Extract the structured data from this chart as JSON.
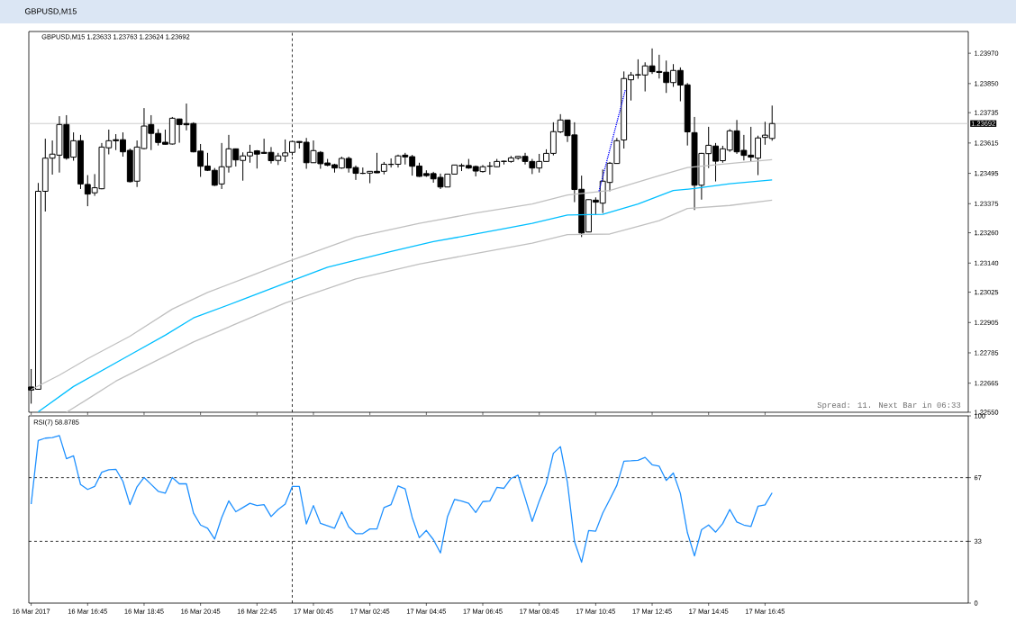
{
  "chart_data": [
    {
      "type": "candlestick",
      "title": "GBPUSD,M15",
      "subtitle": "GBPUSD,M15  1.23633 1.23763 1.23624 1.23692",
      "x": [
        "2017-03-16T14:45",
        "2017-03-16T15:00",
        "2017-03-16T15:15",
        "2017-03-16T15:30",
        "2017-03-16T15:45",
        "2017-03-16T16:00",
        "2017-03-16T16:15",
        "2017-03-16T16:30",
        "2017-03-16T16:45",
        "2017-03-16T17:00",
        "2017-03-16T17:15",
        "2017-03-16T17:30",
        "2017-03-16T17:45",
        "2017-03-16T18:00",
        "2017-03-16T18:15",
        "2017-03-16T18:30",
        "2017-03-16T18:45",
        "2017-03-16T19:00",
        "2017-03-16T19:15",
        "2017-03-16T19:30",
        "2017-03-16T19:45",
        "2017-03-16T20:00",
        "2017-03-16T20:15",
        "2017-03-16T20:30",
        "2017-03-16T20:45",
        "2017-03-16T21:00",
        "2017-03-16T21:15",
        "2017-03-16T21:30",
        "2017-03-16T21:45",
        "2017-03-16T22:00",
        "2017-03-16T22:15",
        "2017-03-16T22:30",
        "2017-03-16T22:45",
        "2017-03-16T23:00",
        "2017-03-16T23:15",
        "2017-03-16T23:30",
        "2017-03-16T23:45",
        "2017-03-17T00:00",
        "2017-03-17T00:15",
        "2017-03-17T00:30",
        "2017-03-17T00:45",
        "2017-03-17T01:00",
        "2017-03-17T01:15",
        "2017-03-17T01:30",
        "2017-03-17T01:45",
        "2017-03-17T02:00",
        "2017-03-17T02:15",
        "2017-03-17T02:30",
        "2017-03-17T02:45",
        "2017-03-17T03:00",
        "2017-03-17T03:15",
        "2017-03-17T03:30",
        "2017-03-17T03:45",
        "2017-03-17T04:00",
        "2017-03-17T04:15",
        "2017-03-17T04:30",
        "2017-03-17T04:45",
        "2017-03-17T05:00",
        "2017-03-17T05:15",
        "2017-03-17T05:30",
        "2017-03-17T05:45",
        "2017-03-17T06:00",
        "2017-03-17T06:15",
        "2017-03-17T06:30",
        "2017-03-17T06:45",
        "2017-03-17T07:00",
        "2017-03-17T07:15",
        "2017-03-17T07:30",
        "2017-03-17T07:45",
        "2017-03-17T08:00",
        "2017-03-17T08:15",
        "2017-03-17T08:30",
        "2017-03-17T08:45",
        "2017-03-17T09:00",
        "2017-03-17T09:15",
        "2017-03-17T09:30",
        "2017-03-17T09:45",
        "2017-03-17T10:00",
        "2017-03-17T10:15",
        "2017-03-17T10:30",
        "2017-03-17T10:45",
        "2017-03-17T11:00",
        "2017-03-17T11:15",
        "2017-03-17T11:30",
        "2017-03-17T11:45",
        "2017-03-17T12:00",
        "2017-03-17T12:15",
        "2017-03-17T12:30",
        "2017-03-17T12:45",
        "2017-03-17T13:00",
        "2017-03-17T13:15",
        "2017-03-17T13:30",
        "2017-03-17T13:45",
        "2017-03-17T14:00",
        "2017-03-17T14:15",
        "2017-03-17T14:30",
        "2017-03-17T14:45",
        "2017-03-17T15:00",
        "2017-03-17T15:15",
        "2017-03-17T15:30",
        "2017-03-17T15:45",
        "2017-03-17T16:00",
        "2017-03-17T16:15",
        "2017-03-17T16:30",
        "2017-03-17T16:45",
        "2017-03-17T17:00"
      ],
      "ohlc": [
        [
          1.2265,
          1.22721,
          1.22584,
          1.22638
        ],
        [
          1.22641,
          1.23457,
          1.22641,
          1.23424
        ],
        [
          1.23424,
          1.23632,
          1.23344,
          1.23555
        ],
        [
          1.23555,
          1.23625,
          1.2349,
          1.23571
        ],
        [
          1.23567,
          1.23721,
          1.23498,
          1.23688
        ],
        [
          1.23688,
          1.23725,
          1.23549,
          1.23555
        ],
        [
          1.23559,
          1.23657,
          1.23545,
          1.23624
        ],
        [
          1.23624,
          1.23647,
          1.23433,
          1.23453
        ],
        [
          1.23451,
          1.23488,
          1.23365,
          1.23413
        ],
        [
          1.23418,
          1.23492,
          1.23406,
          1.23438
        ],
        [
          1.23434,
          1.23615,
          1.23432,
          1.23599
        ],
        [
          1.23596,
          1.23668,
          1.2357,
          1.23624
        ],
        [
          1.23628,
          1.2365,
          1.23587,
          1.23624
        ],
        [
          1.23628,
          1.23657,
          1.23561,
          1.2358
        ],
        [
          1.23586,
          1.23593,
          1.23459,
          1.23462
        ],
        [
          1.23464,
          1.23625,
          1.23441,
          1.23599
        ],
        [
          1.23593,
          1.23753,
          1.2359,
          1.23682
        ],
        [
          1.23688,
          1.23725,
          1.23587,
          1.23653
        ],
        [
          1.23653,
          1.2367,
          1.23605,
          1.23617
        ],
        [
          1.23618,
          1.23668,
          1.23609,
          1.2361
        ],
        [
          1.23611,
          1.23718,
          1.23609,
          1.23713
        ],
        [
          1.2371,
          1.23711,
          1.23616,
          1.23688
        ],
        [
          1.23692,
          1.23771,
          1.23665,
          1.23687
        ],
        [
          1.23692,
          1.23697,
          1.23578,
          1.2358
        ],
        [
          1.23583,
          1.23611,
          1.23481,
          1.23523
        ],
        [
          1.23524,
          1.23576,
          1.23504,
          1.23507
        ],
        [
          1.23507,
          1.23516,
          1.23445,
          1.23448
        ],
        [
          1.23453,
          1.23615,
          1.23433,
          1.23521
        ],
        [
          1.23521,
          1.23647,
          1.23498,
          1.23592
        ],
        [
          1.23592,
          1.23593,
          1.23522,
          1.23548
        ],
        [
          1.23546,
          1.23578,
          1.23466,
          1.23564
        ],
        [
          1.23564,
          1.23608,
          1.23537,
          1.23578
        ],
        [
          1.23584,
          1.23587,
          1.23514,
          1.23571
        ],
        [
          1.23578,
          1.23632,
          1.23573,
          1.23574
        ],
        [
          1.23578,
          1.23599,
          1.23534,
          1.23545
        ],
        [
          1.23546,
          1.23576,
          1.23528,
          1.23564
        ],
        [
          1.23564,
          1.23629,
          1.2354,
          1.23576
        ],
        [
          1.23578,
          1.23623,
          1.23566,
          1.23621
        ],
        [
          1.23621,
          1.23622,
          1.23593,
          1.23617
        ],
        [
          1.23618,
          1.23635,
          1.23513,
          1.23537
        ],
        [
          1.23537,
          1.23625,
          1.23537,
          1.23585
        ],
        [
          1.23578,
          1.23583,
          1.23513,
          1.23533
        ],
        [
          1.23536,
          1.23552,
          1.23523,
          1.23527
        ],
        [
          1.23529,
          1.23533,
          1.23498,
          1.23516
        ],
        [
          1.23516,
          1.23561,
          1.23513,
          1.23554
        ],
        [
          1.23554,
          1.23561,
          1.23498,
          1.23516
        ],
        [
          1.23518,
          1.23526,
          1.23469,
          1.23495
        ],
        [
          1.23495,
          1.23518,
          1.23492,
          1.23495
        ],
        [
          1.23496,
          1.23504,
          1.23456,
          1.23503
        ],
        [
          1.23503,
          1.23576,
          1.23496,
          1.23497
        ],
        [
          1.23503,
          1.2354,
          1.23491,
          1.23531
        ],
        [
          1.2353,
          1.23554,
          1.23518,
          1.23531
        ],
        [
          1.23531,
          1.23569,
          1.23518,
          1.23564
        ],
        [
          1.23567,
          1.23576,
          1.2353,
          1.2356
        ],
        [
          1.23561,
          1.23568,
          1.23486,
          1.23523
        ],
        [
          1.23524,
          1.23537,
          1.23481,
          1.23483
        ],
        [
          1.23494,
          1.23507,
          1.23481,
          1.23486
        ],
        [
          1.23494,
          1.23501,
          1.23458,
          1.23473
        ],
        [
          1.23479,
          1.23494,
          1.23433,
          1.23441
        ],
        [
          1.23441,
          1.23492,
          1.23441,
          1.23492
        ],
        [
          1.23492,
          1.23528,
          1.23492,
          1.23528
        ],
        [
          1.23524,
          1.23534,
          1.23504,
          1.23526
        ],
        [
          1.23526,
          1.23552,
          1.23513,
          1.23516
        ],
        [
          1.23522,
          1.23526,
          1.23483,
          1.23504
        ],
        [
          1.23502,
          1.23528,
          1.23498,
          1.23521
        ],
        [
          1.23523,
          1.2354,
          1.2349,
          1.23524
        ],
        [
          1.23521,
          1.23552,
          1.2352,
          1.23542
        ],
        [
          1.23542,
          1.23545,
          1.2353,
          1.23543
        ],
        [
          1.23542,
          1.23564,
          1.23537,
          1.23556
        ],
        [
          1.23555,
          1.23564,
          1.23549,
          1.23562
        ],
        [
          1.23562,
          1.23576,
          1.2353,
          1.23542
        ],
        [
          1.23542,
          1.23552,
          1.23492,
          1.23516
        ],
        [
          1.23516,
          1.23572,
          1.23498,
          1.23542
        ],
        [
          1.23542,
          1.2359,
          1.23542,
          1.23574
        ],
        [
          1.23574,
          1.23697,
          1.23566,
          1.2366
        ],
        [
          1.23659,
          1.23729,
          1.23654,
          1.23706
        ],
        [
          1.23706,
          1.23707,
          1.23619,
          1.23644
        ],
        [
          1.23647,
          1.23697,
          1.23381,
          1.23431
        ],
        [
          1.23432,
          1.23486,
          1.23243,
          1.23259
        ],
        [
          1.23263,
          1.23391,
          1.23263,
          1.23391
        ],
        [
          1.23389,
          1.234,
          1.23332,
          1.23381
        ],
        [
          1.23377,
          1.2351,
          1.23338,
          1.23464
        ],
        [
          1.23459,
          1.2354,
          1.23424,
          1.23535
        ],
        [
          1.23534,
          1.23635,
          1.23534,
          1.23624
        ],
        [
          1.23627,
          1.23898,
          1.23593,
          1.2387
        ],
        [
          1.23865,
          1.23896,
          1.23783,
          1.23884
        ],
        [
          1.23884,
          1.23946,
          1.23869,
          1.23885
        ],
        [
          1.23884,
          1.23934,
          1.23819,
          1.2392
        ],
        [
          1.2392,
          1.23989,
          1.23888,
          1.23897
        ],
        [
          1.23898,
          1.23964,
          1.2387,
          1.23894
        ],
        [
          1.23895,
          1.23941,
          1.23813,
          1.23854
        ],
        [
          1.23854,
          1.23927,
          1.23837,
          1.23902
        ],
        [
          1.23902,
          1.23914,
          1.2378,
          1.23844
        ],
        [
          1.23845,
          1.23852,
          1.23605,
          1.23659
        ],
        [
          1.23656,
          1.23718,
          1.2335,
          1.23448
        ],
        [
          1.23448,
          1.23576,
          1.23391,
          1.23574
        ],
        [
          1.23573,
          1.23679,
          1.23516,
          1.23606
        ],
        [
          1.23603,
          1.23615,
          1.23463,
          1.23543
        ],
        [
          1.23545,
          1.23604,
          1.23537,
          1.23592
        ],
        [
          1.23587,
          1.2367,
          1.2358,
          1.23663
        ],
        [
          1.23663,
          1.23706,
          1.23572,
          1.2358
        ],
        [
          1.23586,
          1.23647,
          1.23546,
          1.23566
        ],
        [
          1.23567,
          1.23679,
          1.23542,
          1.23559
        ],
        [
          1.23555,
          1.23644,
          1.23488,
          1.23635
        ],
        [
          1.23637,
          1.23699,
          1.23608,
          1.23646
        ],
        [
          1.23633,
          1.23763,
          1.23624,
          1.23692
        ]
      ],
      "series": [
        {
          "type": "line",
          "color": "#00bfff",
          "x": [
            "2017-03-16T15:00",
            "2017-03-16T16:15",
            "2017-03-16T18:15",
            "2017-03-16T19:30",
            "2017-03-16T20:30",
            "2017-03-16T22:15",
            "2017-03-17T00:00",
            "2017-03-17T01:15",
            "2017-03-17T03:30",
            "2017-03-17T05:00",
            "2017-03-17T06:30",
            "2017-03-17T08:30",
            "2017-03-17T09:45",
            "2017-03-17T11:00",
            "2017-03-17T12:15",
            "2017-03-17T13:30",
            "2017-03-17T14:15",
            "2017-03-17T15:30",
            "2017-03-17T17:00"
          ],
          "values": [
            1.22552,
            1.22652,
            1.22777,
            1.22855,
            1.22923,
            1.22996,
            1.23071,
            1.23124,
            1.23186,
            1.23225,
            1.23255,
            1.23297,
            1.2333,
            1.23333,
            1.23374,
            1.23427,
            1.23435,
            1.23454,
            1.23469
          ]
        },
        {
          "type": "line",
          "color": "#c0c0c0",
          "x": [
            "2017-03-16T14:45",
            "2017-03-16T15:45",
            "2017-03-16T16:45",
            "2017-03-16T18:15",
            "2017-03-16T19:45",
            "2017-03-16T21:00",
            "2017-03-16T22:15",
            "2017-03-16T23:45",
            "2017-03-17T02:15",
            "2017-03-17T04:30",
            "2017-03-17T06:30",
            "2017-03-17T08:30",
            "2017-03-17T09:45",
            "2017-03-17T11:15",
            "2017-03-17T13:00",
            "2017-03-17T14:00",
            "2017-03-17T15:30",
            "2017-03-17T17:00"
          ],
          "values": [
            1.2264,
            1.22697,
            1.22762,
            1.22851,
            1.22958,
            1.23024,
            1.23077,
            1.23142,
            1.23243,
            1.23297,
            1.23338,
            1.23374,
            1.23409,
            1.23427,
            1.23486,
            1.23518,
            1.23534,
            1.23549
          ]
        },
        {
          "type": "line",
          "color": "#c0c0c0",
          "x": [
            "2017-03-16T16:00",
            "2017-03-16T16:45",
            "2017-03-16T17:45",
            "2017-03-16T20:30",
            "2017-03-16T22:00",
            "2017-03-16T23:45",
            "2017-03-17T02:15",
            "2017-03-17T04:30",
            "2017-03-17T06:30",
            "2017-03-17T08:30",
            "2017-03-17T09:45",
            "2017-03-17T11:15",
            "2017-03-17T13:00",
            "2017-03-17T14:00",
            "2017-03-17T15:30",
            "2017-03-17T17:00"
          ],
          "values": [
            1.2255,
            1.22602,
            1.22673,
            1.22828,
            1.22899,
            1.22982,
            1.23077,
            1.23136,
            1.23178,
            1.23219,
            1.23253,
            1.23255,
            1.23308,
            1.23356,
            1.23368,
            1.23389
          ]
        },
        {
          "type": "line",
          "color": "#0000ff",
          "line_style": "dotted",
          "x": [
            "2017-03-17T10:52",
            "2017-03-17T11:48"
          ],
          "values": [
            1.23424,
            1.23825
          ]
        }
      ],
      "xlim": [
        "2017-03-16T14:40",
        "2017-03-17T23:57"
      ],
      "xticks": [
        {
          "value": "2017-03-16T14:45",
          "label": null
        },
        {
          "value": "2017-03-16T16:45",
          "label": null
        },
        {
          "value": "2017-03-16T18:45",
          "label": null
        },
        {
          "value": "2017-03-16T20:45",
          "label": null
        },
        {
          "value": "2017-03-16T22:45",
          "label": null
        },
        {
          "value": "2017-03-17T00:45",
          "label": null
        },
        {
          "value": "2017-03-17T02:45",
          "label": null
        },
        {
          "value": "2017-03-17T04:45",
          "label": null
        },
        {
          "value": "2017-03-17T06:45",
          "label": null
        },
        {
          "value": "2017-03-17T08:45",
          "label": null
        },
        {
          "value": "2017-03-17T10:45",
          "label": null
        },
        {
          "value": "2017-03-17T12:45",
          "label": null
        },
        {
          "value": "2017-03-17T14:45",
          "label": null
        },
        {
          "value": "2017-03-17T16:45",
          "label": null
        }
      ],
      "ylim": [
        1.2255,
        1.24056
      ],
      "yticks": [
        {
          "value": 1.2255,
          "label": "1.22550"
        },
        1.22665,
        1.22785,
        1.22905,
        1.23025,
        {
          "value": 1.2314,
          "label": "1.23140"
        },
        {
          "value": 1.2326,
          "label": "1.23260"
        },
        1.23375,
        1.23495,
        1.23615,
        1.23735,
        {
          "value": 1.2385,
          "label": "1.23850"
        },
        {
          "value": 1.2397,
          "label": "1.23970"
        }
      ],
      "tick_labels": "y",
      "ref_lines": [
        {
          "axis": "y",
          "value": 1.23692,
          "label": "1.23692",
          "color": "#c0c0c0"
        },
        {
          "axis": "x",
          "value": "2017-03-17T00:00",
          "color": "#000000",
          "line_style": "dashed"
        }
      ],
      "annotations": [
        "Spread: 11. Next Bar in 06:33"
      ]
    },
    {
      "type": "line",
      "title": "RSI(7) 58.8785",
      "x": [
        "2017-03-16T14:45",
        "2017-03-16T15:00",
        "2017-03-16T15:15",
        "2017-03-16T15:30",
        "2017-03-16T15:45",
        "2017-03-16T16:00",
        "2017-03-16T16:15",
        "2017-03-16T16:30",
        "2017-03-16T16:45",
        "2017-03-16T17:00",
        "2017-03-16T17:15",
        "2017-03-16T17:30",
        "2017-03-16T17:45",
        "2017-03-16T18:00",
        "2017-03-16T18:15",
        "2017-03-16T18:30",
        "2017-03-16T18:45",
        "2017-03-16T19:00",
        "2017-03-16T19:15",
        "2017-03-16T19:30",
        "2017-03-16T19:45",
        "2017-03-16T20:00",
        "2017-03-16T20:15",
        "2017-03-16T20:30",
        "2017-03-16T20:45",
        "2017-03-16T21:00",
        "2017-03-16T21:15",
        "2017-03-16T21:30",
        "2017-03-16T21:45",
        "2017-03-16T22:00",
        "2017-03-16T22:15",
        "2017-03-16T22:30",
        "2017-03-16T22:45",
        "2017-03-16T23:00",
        "2017-03-16T23:15",
        "2017-03-16T23:30",
        "2017-03-16T23:45",
        "2017-03-17T00:00",
        "2017-03-17T00:15",
        "2017-03-17T00:30",
        "2017-03-17T00:45",
        "2017-03-17T01:00",
        "2017-03-17T01:15",
        "2017-03-17T01:30",
        "2017-03-17T01:45",
        "2017-03-17T02:00",
        "2017-03-17T02:15",
        "2017-03-17T02:30",
        "2017-03-17T02:45",
        "2017-03-17T03:00",
        "2017-03-17T03:15",
        "2017-03-17T03:30",
        "2017-03-17T03:45",
        "2017-03-17T04:00",
        "2017-03-17T04:15",
        "2017-03-17T04:30",
        "2017-03-17T04:45",
        "2017-03-17T05:00",
        "2017-03-17T05:15",
        "2017-03-17T05:30",
        "2017-03-17T05:45",
        "2017-03-17T06:00",
        "2017-03-17T06:15",
        "2017-03-17T06:30",
        "2017-03-17T06:45",
        "2017-03-17T07:00",
        "2017-03-17T07:15",
        "2017-03-17T07:30",
        "2017-03-17T07:45",
        "2017-03-17T08:00",
        "2017-03-17T08:15",
        "2017-03-17T08:30",
        "2017-03-17T08:45",
        "2017-03-17T09:00",
        "2017-03-17T09:15",
        "2017-03-17T09:30",
        "2017-03-17T09:45",
        "2017-03-17T10:00",
        "2017-03-17T10:15",
        "2017-03-17T10:30",
        "2017-03-17T10:45",
        "2017-03-17T11:00",
        "2017-03-17T11:15",
        "2017-03-17T11:30",
        "2017-03-17T11:45",
        "2017-03-17T12:00",
        "2017-03-17T12:15",
        "2017-03-17T12:30",
        "2017-03-17T12:45",
        "2017-03-17T13:00",
        "2017-03-17T13:15",
        "2017-03-17T13:30",
        "2017-03-17T13:45",
        "2017-03-17T14:00",
        "2017-03-17T14:15",
        "2017-03-17T14:30",
        "2017-03-17T14:45",
        "2017-03-17T15:00",
        "2017-03-17T15:15",
        "2017-03-17T15:30",
        "2017-03-17T15:45",
        "2017-03-17T16:00",
        "2017-03-17T16:15",
        "2017-03-17T16:30",
        "2017-03-17T16:45",
        "2017-03-17T17:00"
      ],
      "series": [
        {
          "color": "#1e90ff",
          "values": [
            52.9,
            86.8,
            88.1,
            88.4,
            89.5,
            77.1,
            78.7,
            63.3,
            60.7,
            62.3,
            69.9,
            71.2,
            71.5,
            65.0,
            52.6,
            62.1,
            67.1,
            63.4,
            59.7,
            58.7,
            67.1,
            63.7,
            63.7,
            48.1,
            41.7,
            40.0,
            34.2,
            45.7,
            54.6,
            48.8,
            51.0,
            53.3,
            52.1,
            52.6,
            46.2,
            50.0,
            52.9,
            62.3,
            62.3,
            42.3,
            52.1,
            42.6,
            41.3,
            40.0,
            48.8,
            40.7,
            37.1,
            37.1,
            39.6,
            39.6,
            51.0,
            52.6,
            62.6,
            61.0,
            45.7,
            34.9,
            38.8,
            33.9,
            26.8,
            46.2,
            55.4,
            54.5,
            53.3,
            48.4,
            54.2,
            54.5,
            61.8,
            61.3,
            66.6,
            68.3,
            56.2,
            43.6,
            54.5,
            63.9,
            80.0,
            83.6,
            64.2,
            32.8,
            21.8,
            38.8,
            38.4,
            48.1,
            55.4,
            62.9,
            75.8,
            76.0,
            76.3,
            77.8,
            73.9,
            73.1,
            65.5,
            69.5,
            58.6,
            37.6,
            25.2,
            39.2,
            41.7,
            37.9,
            42.5,
            50.0,
            43.3,
            41.7,
            40.9,
            51.7,
            52.5,
            58.9
          ]
        }
      ],
      "xlim": [
        "2017-03-16T14:40",
        "2017-03-17T23:57"
      ],
      "xticks": [
        {
          "value": "2017-03-16T14:45",
          "label": "16 Mar 2017"
        },
        {
          "value": "2017-03-16T16:45",
          "label": "16 Mar 16:45"
        },
        {
          "value": "2017-03-16T18:45",
          "label": "16 Mar 18:45"
        },
        {
          "value": "2017-03-16T20:45",
          "label": "16 Mar 20:45"
        },
        {
          "value": "2017-03-16T22:45",
          "label": "16 Mar 22:45"
        },
        {
          "value": "2017-03-17T00:45",
          "label": "17 Mar 00:45"
        },
        {
          "value": "2017-03-17T02:45",
          "label": "17 Mar 02:45"
        },
        {
          "value": "2017-03-17T04:45",
          "label": "17 Mar 04:45"
        },
        {
          "value": "2017-03-17T06:45",
          "label": "17 Mar 06:45"
        },
        {
          "value": "2017-03-17T08:45",
          "label": "17 Mar 08:45"
        },
        {
          "value": "2017-03-17T10:45",
          "label": "17 Mar 10:45"
        },
        {
          "value": "2017-03-17T12:45",
          "label": "17 Mar 12:45"
        },
        {
          "value": "2017-03-17T14:45",
          "label": "17 Mar 14:45"
        },
        {
          "value": "2017-03-17T16:45",
          "label": "17 Mar 16:45"
        }
      ],
      "ylim": [
        0,
        100
      ],
      "yticks": [
        0,
        33,
        67,
        100
      ],
      "ref_lines": [
        {
          "axis": "y",
          "value": 67,
          "color": "#000000",
          "line_style": "dashed"
        },
        {
          "axis": "y",
          "value": 33,
          "color": "#000000",
          "line_style": "dashed"
        },
        {
          "axis": "x",
          "value": "2017-03-17T00:00",
          "color": "#000000",
          "line_style": "dashed"
        }
      ]
    }
  ]
}
